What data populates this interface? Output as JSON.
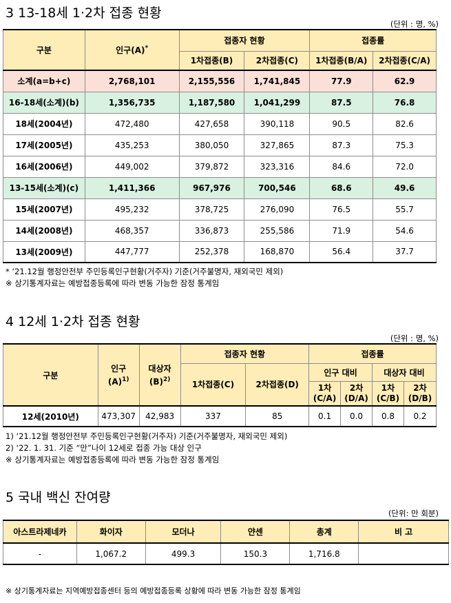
{
  "s3": {
    "title": "3  13-18세 1·2차 접종 현황",
    "unit": "(단위 : 명, %)",
    "headers": {
      "category": "구분",
      "population": "인구(A)",
      "population_mark": "*",
      "vaccinated_group": "접종자 현황",
      "first_dose": "1차접종(B)",
      "second_dose": "2차접종(C)",
      "rate_group": "접종률",
      "first_rate": "1차접종(B/A)",
      "second_rate": "2차접종(C/A)"
    },
    "rows": [
      [
        "소계(a=b+c)",
        "2,768,101",
        "2,155,556",
        "1,741,845",
        "77.9",
        "62.9"
      ],
      [
        "16-18세(소계)(b)",
        "1,356,735",
        "1,187,580",
        "1,041,299",
        "87.5",
        "76.8"
      ],
      [
        "18세(2004년)",
        "472,480",
        "427,658",
        "390,118",
        "90.5",
        "82.6"
      ],
      [
        "17세(2005년)",
        "435,253",
        "380,050",
        "327,865",
        "87.3",
        "75.3"
      ],
      [
        "16세(2006년)",
        "449,002",
        "379,872",
        "323,316",
        "84.6",
        "72.0"
      ],
      [
        "13-15세(소계)(c)",
        "1,411,366",
        "967,976",
        "700,546",
        "68.6",
        "49.6"
      ],
      [
        "15세(2007년)",
        "495,232",
        "378,725",
        "276,090",
        "76.5",
        "55.7"
      ],
      [
        "14세(2008년)",
        "468,357",
        "336,873",
        "255,586",
        "71.9",
        "54.6"
      ],
      [
        "13세(2009년)",
        "447,777",
        "252,378",
        "168,870",
        "56.4",
        "37.7"
      ]
    ],
    "notes": [
      " * ‘21.12월 행정안전부 주민등록인구현황(거주자) 기준(거주불명자, 재외국민 제외)",
      "※ 상기통계자료는 예방접종등록에 따라 변동 가능한 잠정 통계임"
    ]
  },
  "s4": {
    "title": "4  12세 1·2차 접종 현황",
    "unit": "(단위 : 명, %)",
    "headers": {
      "category": "구분",
      "population": "인구",
      "population2": "(A)",
      "population_mark": "1)",
      "target": "대상자",
      "target2": "(B)",
      "target_mark": "2)",
      "vaccinated_group": "접종자 현황",
      "first_dose": "1차접종(C)",
      "second_dose": "2차접종(D)",
      "rate_group": "접종률",
      "pop_ratio": "인구 대비",
      "target_ratio": "대상자 대비",
      "r1": "1차",
      "r1b": "(C/A)",
      "r2": "2차",
      "r2b": "(D/A)",
      "r3": "1차",
      "r3b": "(C/B)",
      "r4": "2차",
      "r4b": "(D/B)"
    },
    "row": [
      "12세(2010년)",
      "473,307",
      "42,983",
      "337",
      "85",
      "0.1",
      "0.0",
      "0.8",
      "0.2"
    ],
    "notes": [
      "1) ‘21.12월 행정안전부 주민등록인구현황(거주자) 기준(거주불명자, 재외국민 제외)",
      "2) ‘22. 1. 31. 기준 “만”나이 12세로 접종 가능 대상 인구",
      "※ 상기통계자료는 예방접종등록에 따라 변동 가능한 잠정 통계임"
    ]
  },
  "s5": {
    "title": "5  국내 백신 잔여량",
    "unit": "(단위: 만 회분)",
    "headers": [
      "아스트라제네카",
      "화이자",
      "모더나",
      "얀센",
      "총계",
      "비  고"
    ],
    "row": [
      "-",
      "1,067.2",
      "499.3",
      "150.3",
      "1,716.8",
      ""
    ],
    "note": "※ 상기통계자료는 지역예방접종센터 등의 예방접종등록 상황에 따라 변동 가능한 잠정 통계임"
  }
}
